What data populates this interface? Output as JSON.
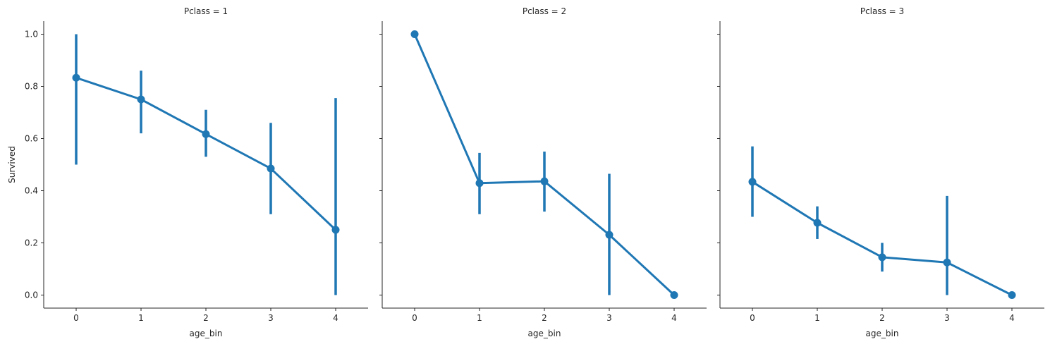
{
  "chart_data": {
    "type": "line",
    "ylabel": "Survived",
    "xlabel": "age_bin",
    "categories": [
      0,
      1,
      2,
      3,
      4
    ],
    "ylim": [
      -0.05,
      1.05
    ],
    "yticks": [
      "0.0",
      "0.2",
      "0.4",
      "0.6",
      "0.8",
      "1.0"
    ],
    "grid": false,
    "color": "#1f77b4",
    "panels": [
      {
        "title": "Pclass = 1",
        "values": [
          0.833,
          0.75,
          0.617,
          0.485,
          0.25
        ],
        "ci_low": [
          0.5,
          0.62,
          0.53,
          0.31,
          0.0
        ],
        "ci_high": [
          1.0,
          0.86,
          0.71,
          0.66,
          0.755
        ]
      },
      {
        "title": "Pclass = 2",
        "values": [
          1.0,
          0.429,
          0.436,
          0.231,
          0.0
        ],
        "ci_low": [
          1.0,
          0.31,
          0.32,
          0.0,
          0.0
        ],
        "ci_high": [
          1.0,
          0.545,
          0.55,
          0.465,
          0.0
        ]
      },
      {
        "title": "Pclass = 3",
        "values": [
          0.434,
          0.277,
          0.145,
          0.125,
          0.0
        ],
        "ci_low": [
          0.3,
          0.215,
          0.09,
          0.0,
          0.0
        ],
        "ci_high": [
          0.57,
          0.34,
          0.2,
          0.38,
          0.0
        ]
      }
    ]
  }
}
